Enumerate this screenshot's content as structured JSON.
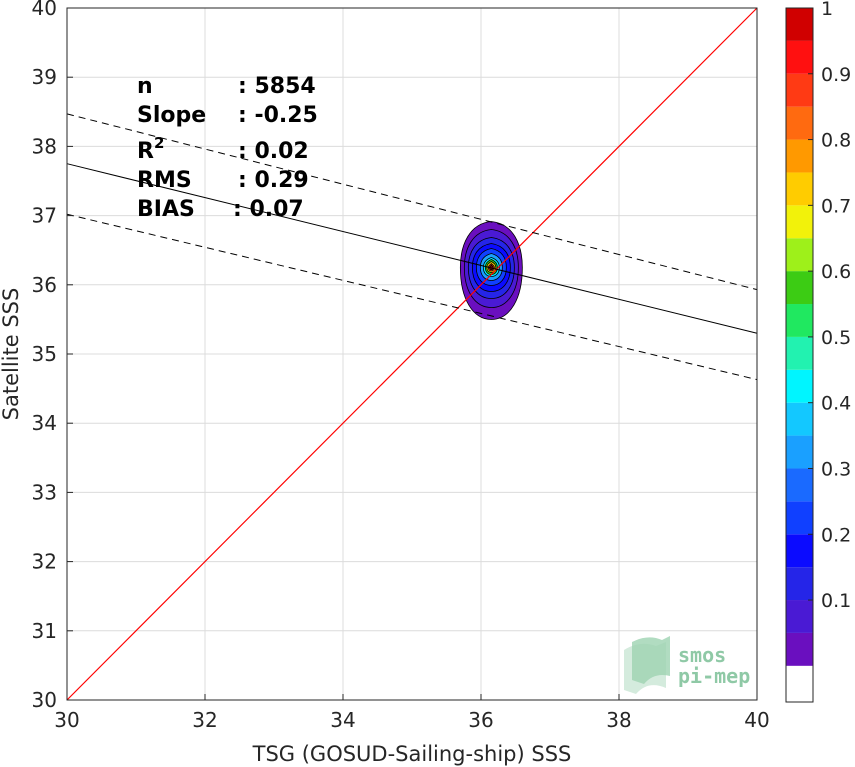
{
  "chart_data": {
    "type": "scatter",
    "subtype": "density-contour",
    "xlabel": "TSG (GOSUD-Sailing-ship) SSS",
    "ylabel": "Satellite SSS",
    "xlim": [
      30,
      40
    ],
    "ylim": [
      30,
      40
    ],
    "x_ticks": [
      "30",
      "32",
      "34",
      "36",
      "38",
      "40"
    ],
    "y_ticks": [
      "30",
      "31",
      "32",
      "33",
      "34",
      "35",
      "36",
      "37",
      "38",
      "39",
      "40"
    ],
    "grid": true,
    "stats": [
      {
        "label": "n",
        "value": ": 5854"
      },
      {
        "label": "Slope",
        "value": ": -0.25"
      },
      {
        "label": "R2",
        "value": ": 0.02"
      },
      {
        "label": "RMS",
        "value": ": 0.29"
      },
      {
        "label": "BIAS",
        "value": ": 0.07"
      }
    ],
    "identity_line": {
      "x": [
        30,
        40
      ],
      "y": [
        30,
        40
      ],
      "color": "#ff0000"
    },
    "regression_line": {
      "x": [
        30,
        40
      ],
      "y": [
        37.75,
        35.3
      ],
      "color": "#000000"
    },
    "upper_bound": {
      "x": [
        30,
        40
      ],
      "y": [
        38.47,
        35.93
      ],
      "color": "#000000",
      "style": "dashed"
    },
    "lower_bound": {
      "x": [
        30,
        40
      ],
      "y": [
        37.02,
        34.63
      ],
      "color": "#000000",
      "style": "dashed"
    },
    "density_center": {
      "x": 36.15,
      "y": 36.25
    },
    "colorbar": {
      "ticks": [
        "0.1",
        "0.2",
        "0.3",
        "0.4",
        "0.5",
        "0.6",
        "0.7",
        "0.8",
        "0.9",
        "1"
      ],
      "levels": [
        0,
        0.05,
        0.1,
        0.15,
        0.2,
        0.25,
        0.3,
        0.35,
        0.4,
        0.45,
        0.5,
        0.55,
        0.6,
        0.65,
        0.7,
        0.75,
        0.8,
        0.85,
        0.9,
        0.95,
        1.0
      ],
      "colors": [
        "#ffffff",
        "#6a0fbf",
        "#4a1ad4",
        "#2525e8",
        "#0b0bff",
        "#1040ff",
        "#1a6aff",
        "#1aa0ff",
        "#13c8ff",
        "#00f5ff",
        "#22f2b0",
        "#20e860",
        "#3ccc14",
        "#9ef01a",
        "#f2f20a",
        "#ffcc00",
        "#ff9900",
        "#ff6a10",
        "#ff3a14",
        "#ff1010",
        "#d00000",
        "#8a0000"
      ]
    }
  },
  "logo": {
    "line1": "smos",
    "line2": "pi-mep"
  }
}
